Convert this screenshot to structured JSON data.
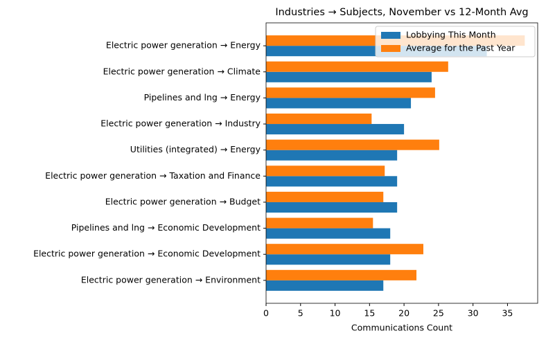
{
  "chart_data": {
    "type": "barh",
    "title": "Industries → Subjects, November vs 12-Month Avg",
    "xlabel": "Communications Count",
    "categories": [
      "Electric power generation → Energy",
      "Electric power generation → Climate",
      "Pipelines and lng → Energy",
      "Electric power generation → Industry",
      "Utilities (integrated) → Energy",
      "Electric power generation → Taxation and Finance",
      "Electric power generation → Budget",
      "Pipelines and lng → Economic Development",
      "Electric power generation → Economic Development",
      "Electric power generation → Environment"
    ],
    "series": [
      {
        "name": "Lobbying This Month",
        "color": "#1f77b4",
        "values": [
          32,
          24,
          21,
          20,
          19,
          19,
          19,
          18,
          18,
          17
        ]
      },
      {
        "name": "Average for the Past Year",
        "color": "#ff7f0e",
        "values": [
          37.5,
          26.4,
          24.5,
          15.3,
          25.1,
          17.2,
          17,
          15.5,
          22.8,
          21.8
        ]
      }
    ],
    "xlim": [
      0,
      39.375
    ],
    "xticks": [
      0,
      5,
      10,
      15,
      20,
      25,
      30,
      35
    ],
    "legend": "upper right"
  }
}
